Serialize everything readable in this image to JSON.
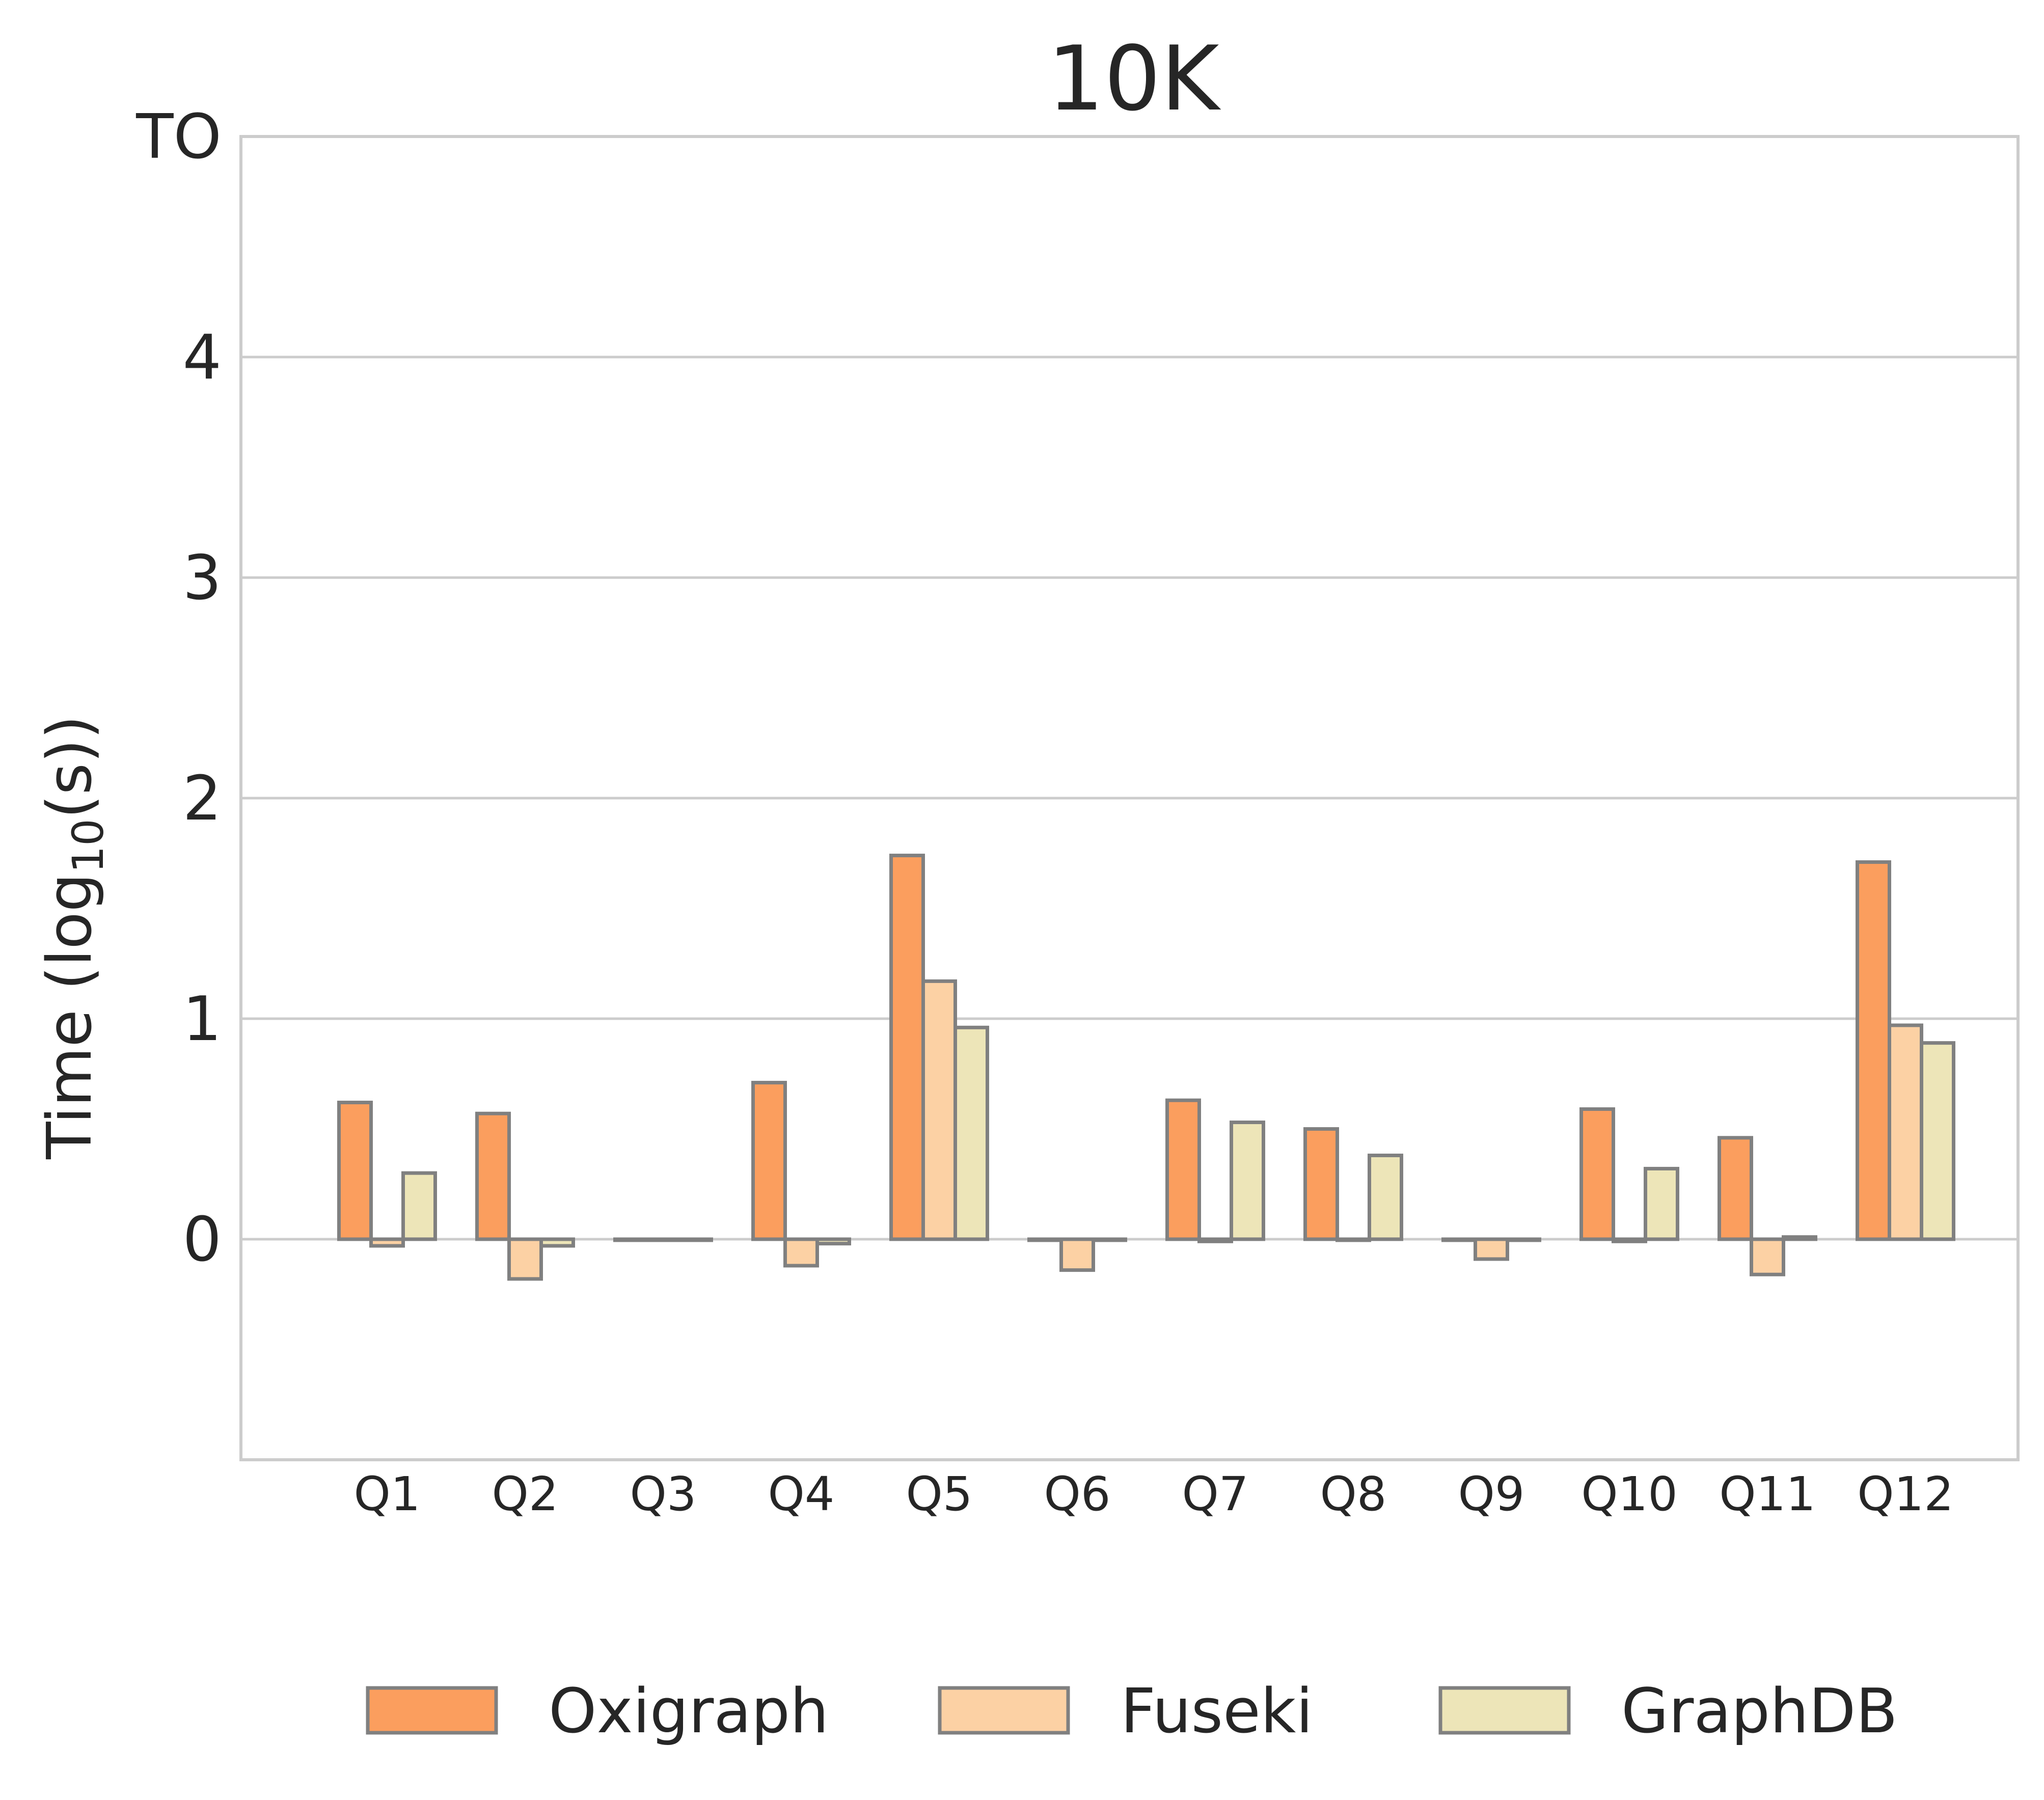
{
  "chart_data": {
    "type": "bar",
    "title": "10K",
    "ylabel": "Time (log",
    "ylabel_subscript": "10",
    "ylabel_suffix": "(s))",
    "xlabel": "",
    "ylim": [
      -1,
      5
    ],
    "yticks": [
      {
        "value": 0,
        "label": "0"
      },
      {
        "value": 1,
        "label": "1"
      },
      {
        "value": 2,
        "label": "2"
      },
      {
        "value": 3,
        "label": "3"
      },
      {
        "value": 4,
        "label": "4"
      },
      {
        "value": 5,
        "label": "TO"
      }
    ],
    "grid": true,
    "legend_position": "bottom",
    "categories": [
      "Q1",
      "Q2",
      "Q3",
      "Q4",
      "Q5",
      "Q6",
      "Q7",
      "Q8",
      "Q9",
      "Q10",
      "Q11",
      "Q12"
    ],
    "series": [
      {
        "name": "Oxigraph",
        "color": "#fb9e5e",
        "values": [
          0.62,
          0.57,
          0.0,
          0.71,
          1.74,
          0.0,
          0.63,
          0.5,
          0.0,
          0.59,
          0.46,
          1.71
        ]
      },
      {
        "name": "Fuseki",
        "color": "#fcd1a4",
        "values": [
          -0.03,
          -0.18,
          0.0,
          -0.12,
          1.17,
          -0.14,
          -0.01,
          0.0,
          -0.09,
          -0.01,
          -0.16,
          0.97
        ]
      },
      {
        "name": "GraphDB",
        "color": "#ede5b8",
        "values": [
          0.3,
          -0.03,
          0.0,
          -0.02,
          0.96,
          0.0,
          0.53,
          0.38,
          0.0,
          0.32,
          0.01,
          0.89
        ]
      }
    ],
    "bar_edge_color": "#808080",
    "grid_color": "#cccccc",
    "text_color": "#262626"
  }
}
